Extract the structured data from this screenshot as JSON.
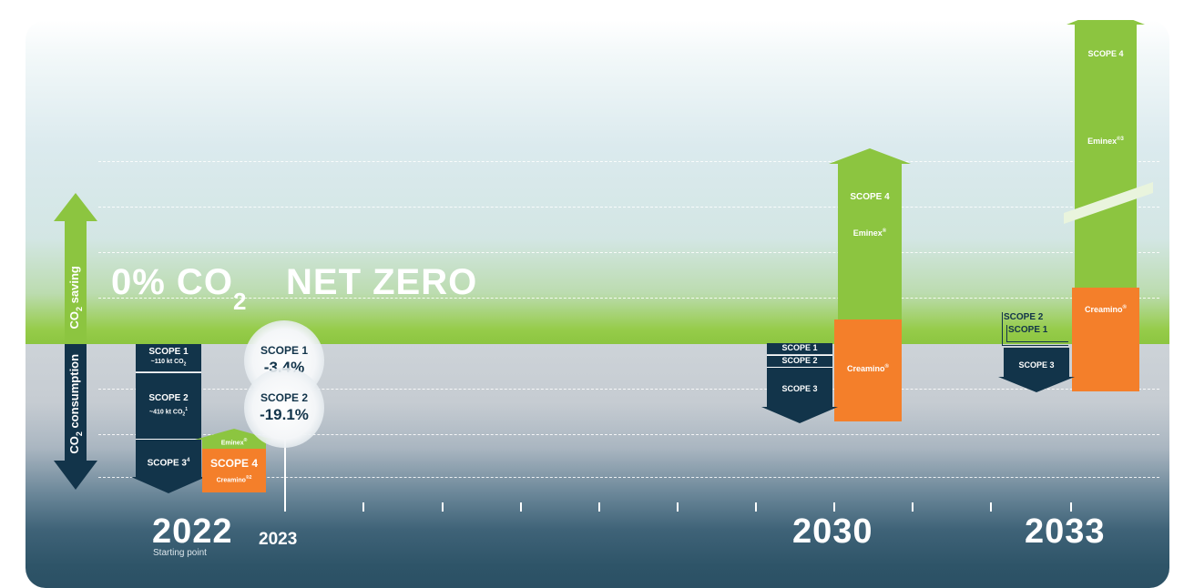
{
  "headline": {
    "zero_pct": "0% CO",
    "zero_sub": "2",
    "net_zero": "NET ZERO"
  },
  "axis": {
    "saving_label": "CO",
    "saving_sub": "2",
    "saving_rest": " saving",
    "consumption_label": "CO",
    "consumption_sub": "2",
    "consumption_rest": " consumption"
  },
  "years": {
    "y2022": "2022",
    "y2022_caption": "Starting point",
    "y2023": "2023",
    "y2030": "2030",
    "y2033": "2033"
  },
  "col2022": {
    "scope1": "SCOPE 1",
    "scope1_value": "~110 kt CO",
    "scope1_sub": "2",
    "scope2": "SCOPE 2",
    "scope2_value": "~410 kt CO",
    "scope2_sub": "2",
    "scope2_sup": "1",
    "scope3": "SCOPE 3",
    "scope3_sup": "4",
    "scope4": "SCOPE 4",
    "eminex": "Eminex",
    "eminex_sup": "®",
    "creamino": "Creamino",
    "creamino_sup": "®2"
  },
  "col2023": {
    "scope1": "SCOPE 1",
    "scope1_change": "-3.4%",
    "scope2": "SCOPE 2",
    "scope2_change": "-19.1%"
  },
  "col2030": {
    "scope4": "SCOPE 4",
    "eminex": "Eminex",
    "eminex_sup": "®",
    "creamino": "Creamino",
    "creamino_sup": "®",
    "scope1": "SCOPE 1",
    "scope2": "SCOPE 2",
    "scope3": "SCOPE 3"
  },
  "col2033": {
    "scope4": "SCOPE 4",
    "eminex": "Eminex",
    "eminex_sup": "®3",
    "creamino": "Creamino",
    "creamino_sup": "®",
    "scope1": "SCOPE 1",
    "scope2": "SCOPE 2",
    "scope3": "SCOPE 3"
  },
  "colors": {
    "navy": "#12344a",
    "green": "#8cc540",
    "orange": "#f47f2a"
  }
}
